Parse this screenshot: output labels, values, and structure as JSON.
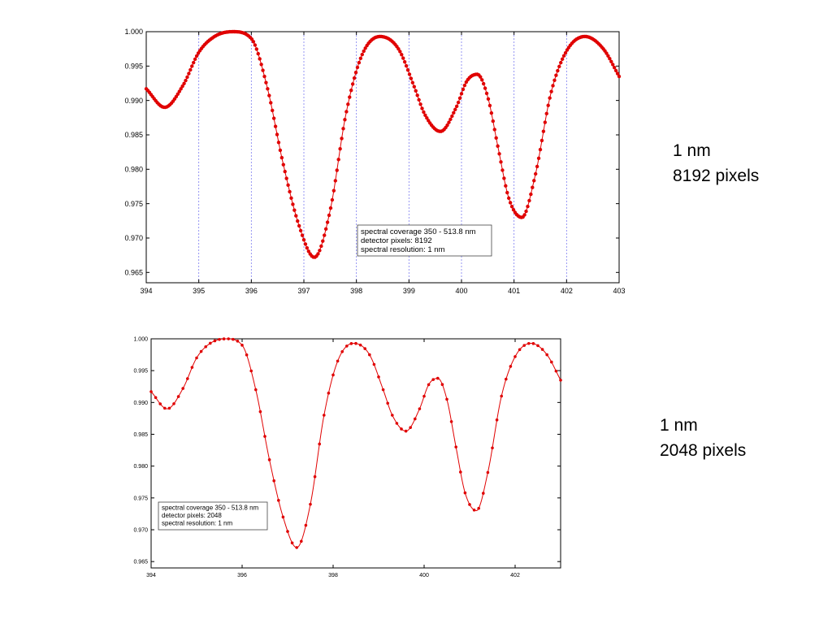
{
  "side_labels": [
    {
      "line1": "1 nm",
      "line2": "8192 pixels"
    },
    {
      "line1": "1 nm",
      "line2": "2048 pixels"
    }
  ],
  "colors": {
    "series": "#e00000",
    "grid": "#7c7cf0",
    "axis": "#000000"
  },
  "chart_data": [
    {
      "type": "line",
      "markers": "dense",
      "title": "",
      "xlabel": "",
      "ylabel": "",
      "xlim": [
        394,
        403
      ],
      "ylim": [
        0.9635,
        1.0
      ],
      "grid": "vertical",
      "xticks": [
        394,
        395,
        396,
        397,
        398,
        399,
        400,
        401,
        402,
        403
      ],
      "yticks": [
        0.965,
        0.97,
        0.975,
        0.98,
        0.985,
        0.99,
        0.995,
        1.0
      ],
      "legend_position": "bottom-right",
      "legend": [
        "spectral coverage 350 - 513.8 nm",
        "detector pixels:  8192",
        "spectral resolution:  1 nm"
      ],
      "series": [
        {
          "x": [
            394.0,
            394.35,
            394.7,
            395.0,
            395.3,
            395.65,
            396.0,
            396.3,
            396.6,
            396.9,
            397.2,
            397.5,
            397.8,
            398.1,
            398.45,
            398.8,
            399.1,
            399.3,
            399.6,
            399.9,
            400.1,
            400.3,
            400.5,
            400.7,
            400.9,
            401.15,
            401.4,
            401.7,
            402.0,
            402.35,
            402.7,
            403.0
          ],
          "y": [
            0.9917,
            0.989,
            0.9922,
            0.997,
            0.9993,
            1.0,
            0.999,
            0.992,
            0.981,
            0.972,
            0.9672,
            0.974,
            0.988,
            0.9965,
            0.9993,
            0.9975,
            0.992,
            0.988,
            0.9855,
            0.989,
            0.9928,
            0.9938,
            0.9905,
            0.983,
            0.9758,
            0.973,
            0.979,
            0.991,
            0.9972,
            0.9993,
            0.9975,
            0.9935
          ]
        }
      ]
    },
    {
      "type": "line",
      "markers": "sparse",
      "title": "",
      "xlabel": "",
      "ylabel": "",
      "xlim": [
        394,
        403
      ],
      "ylim": [
        0.964,
        1.0
      ],
      "grid": "none",
      "xticks": [
        394,
        396,
        398,
        400,
        402
      ],
      "yticks": [
        0.965,
        0.97,
        0.975,
        0.98,
        0.985,
        0.99,
        0.995,
        1.0
      ],
      "legend_position": "bottom-left",
      "legend": [
        "spectral coverage 350 - 513.8 nm",
        "detector pixels:  2048",
        "spectral resolution:  1 nm"
      ],
      "series": [
        {
          "x": [
            394.0,
            394.35,
            394.7,
            395.0,
            395.3,
            395.65,
            396.0,
            396.3,
            396.6,
            396.9,
            397.2,
            397.5,
            397.8,
            398.1,
            398.45,
            398.8,
            399.1,
            399.3,
            399.6,
            399.9,
            400.1,
            400.3,
            400.5,
            400.7,
            400.9,
            401.15,
            401.4,
            401.7,
            402.0,
            402.35,
            402.7,
            403.0
          ],
          "y": [
            0.9917,
            0.989,
            0.9922,
            0.997,
            0.9993,
            1.0,
            0.999,
            0.992,
            0.981,
            0.972,
            0.9672,
            0.974,
            0.988,
            0.9965,
            0.9993,
            0.9975,
            0.992,
            0.988,
            0.9855,
            0.989,
            0.9928,
            0.9938,
            0.9905,
            0.983,
            0.9758,
            0.973,
            0.979,
            0.991,
            0.9972,
            0.9993,
            0.9975,
            0.9935
          ]
        }
      ]
    }
  ]
}
